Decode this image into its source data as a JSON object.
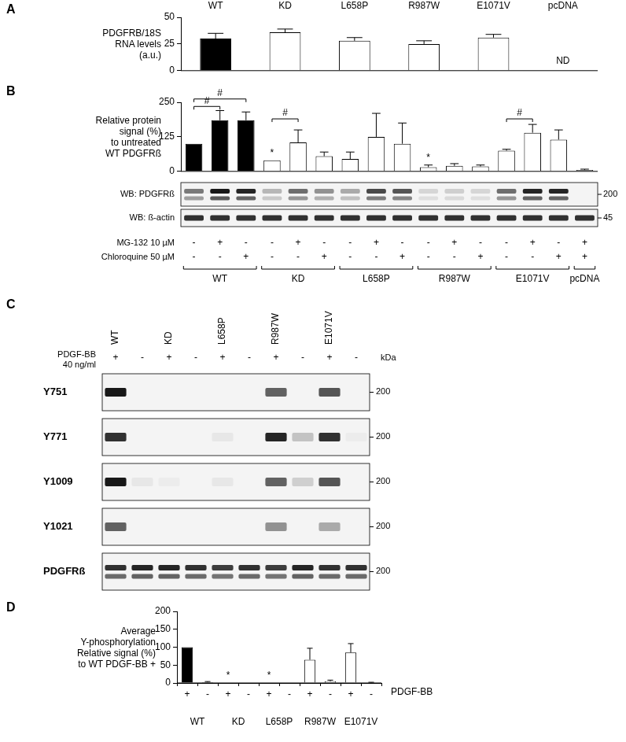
{
  "chart_data": [
    {
      "panel": "A",
      "type": "bar",
      "categories": [
        "WT",
        "KD",
        "L658P",
        "R987W",
        "E1071V",
        "pcDNA"
      ],
      "values": [
        30,
        36,
        28,
        25,
        31,
        null
      ],
      "errors": [
        5,
        3,
        3,
        3,
        3,
        null
      ],
      "colors": [
        "#000000",
        "#ffffff",
        "#ffffff",
        "#ffffff",
        "#ffffff",
        "#ffffff"
      ],
      "y_label": [
        "PDGFRB/18S",
        "RNA levels",
        "(a.u.)"
      ],
      "ylim": [
        0,
        50
      ],
      "yticks": [
        0,
        25,
        50
      ],
      "annotations": [
        {
          "index": 5,
          "text": "ND"
        }
      ]
    },
    {
      "panel": "B",
      "type": "bar",
      "categories": [
        null,
        null,
        null,
        null,
        null,
        null,
        null,
        null,
        null,
        null,
        null,
        null,
        null,
        null,
        null,
        null
      ],
      "values": [
        100,
        185,
        185,
        40,
        105,
        55,
        45,
        125,
        100,
        15,
        20,
        18,
        75,
        140,
        115,
        5
      ],
      "errors": [
        0,
        35,
        30,
        0,
        45,
        15,
        25,
        85,
        75,
        8,
        8,
        5,
        5,
        30,
        35,
        3
      ],
      "colors": [
        "#000000",
        "#000000",
        "#000000",
        "#ffffff",
        "#ffffff",
        "#ffffff",
        "#ffffff",
        "#ffffff",
        "#ffffff",
        "#ffffff",
        "#ffffff",
        "#ffffff",
        "#ffffff",
        "#ffffff",
        "#ffffff",
        "#ffffff"
      ],
      "y_label": [
        "Relative protein",
        "signal (%)",
        "to untreated",
        "WT PDGFRß"
      ],
      "ylim": [
        0,
        250
      ],
      "yticks": [
        0,
        125,
        250
      ],
      "significance": [
        {
          "from": 0,
          "to": 1,
          "y": 235,
          "text": "#"
        },
        {
          "from": 0,
          "to": 2,
          "y": 262,
          "text": "#"
        },
        {
          "from": 3,
          "to": 4,
          "y": 190,
          "text": "#"
        },
        {
          "from": 12,
          "to": 13,
          "y": 190,
          "text": "#"
        }
      ],
      "annotations": [
        {
          "index": 3,
          "text": "*"
        },
        {
          "index": 9,
          "text": "*"
        }
      ]
    },
    {
      "panel": "D",
      "type": "bar",
      "categories": [
        "+",
        "-",
        "+",
        "-",
        "+",
        "-",
        "+",
        "-",
        "+",
        "-"
      ],
      "values": [
        100,
        2,
        1,
        0,
        1,
        0,
        65,
        5,
        85,
        1
      ],
      "errors": [
        0,
        2,
        0,
        0,
        0,
        0,
        32,
        3,
        25,
        1
      ],
      "colors": [
        "#000000",
        "#000000",
        "#ffffff",
        "#ffffff",
        "#ffffff",
        "#ffffff",
        "#ffffff",
        "#ffffff",
        "#ffffff",
        "#ffffff"
      ],
      "x_label": "PDGF-BB",
      "groups": [
        "WT",
        "KD",
        "L658P",
        "R987W",
        "E1071V"
      ],
      "y_label": [
        "Average",
        "Y-phosphorylation",
        "Relative signal (%)",
        "to WT PDGF-BB +"
      ],
      "ylim": [
        0,
        200
      ],
      "yticks": [
        0,
        50,
        100,
        150,
        200
      ],
      "annotations": [
        {
          "index": 2,
          "text": "*"
        },
        {
          "index": 4,
          "text": "*"
        }
      ]
    }
  ],
  "blots": [
    {
      "panel": "B",
      "rows": [
        {
          "label": "WB: PDGFRß",
          "marker": 200,
          "bands": [
            0.5,
            0.9,
            0.85,
            0.25,
            0.55,
            0.4,
            0.3,
            0.7,
            0.65,
            0.12,
            0.15,
            0.12,
            0.55,
            0.85,
            0.85,
            0
          ]
        },
        {
          "label": "WB: ß-actin",
          "marker": 45,
          "bands": [
            0.8,
            0.8,
            0.8,
            0.8,
            0.8,
            0.8,
            0.8,
            0.8,
            0.8,
            0.8,
            0.8,
            0.8,
            0.8,
            0.8,
            0.8,
            0.8
          ]
        }
      ],
      "treatments": [
        {
          "label": "MG-132 10 µM",
          "signs": [
            "-",
            "+",
            "-",
            "-",
            "+",
            "-",
            "-",
            "+",
            "-",
            "-",
            "+",
            "-",
            "-",
            "+",
            "-",
            "+"
          ]
        },
        {
          "label": "Chloroquine 50 µM",
          "signs": [
            "-",
            "-",
            "+",
            "-",
            "-",
            "+",
            "-",
            "-",
            "+",
            "-",
            "-",
            "+",
            "-",
            "-",
            "+",
            "+"
          ]
        }
      ],
      "groups": [
        {
          "label": "WT",
          "lanes": 3
        },
        {
          "label": "KD",
          "lanes": 3
        },
        {
          "label": "L658P",
          "lanes": 3
        },
        {
          "label": "R987W",
          "lanes": 3
        },
        {
          "label": "E1071V",
          "lanes": 3
        },
        {
          "label": "pcDNA",
          "lanes": 1
        }
      ]
    },
    {
      "panel": "C",
      "lane_labels": [
        "WT",
        null,
        "KD",
        null,
        "L658P",
        null,
        "R987W",
        null,
        "E1071V",
        null
      ],
      "treatment": {
        "label": [
          "PDGF-BB",
          "40 ng/ml"
        ],
        "signs": [
          "+",
          "-",
          "+",
          "-",
          "+",
          "-",
          "+",
          "-",
          "+",
          "-"
        ]
      },
      "unit": "kDa",
      "rows": [
        {
          "label": "Y751",
          "marker": 200,
          "bands": [
            0.9,
            0,
            0,
            0,
            0,
            0,
            0.6,
            0,
            0.65,
            0
          ]
        },
        {
          "label": "Y771",
          "marker": 200,
          "bands": [
            0.8,
            0,
            0,
            0,
            0.05,
            0,
            0.85,
            0.2,
            0.8,
            0.03
          ]
        },
        {
          "label": "Y1009",
          "marker": 200,
          "bands": [
            0.9,
            0.05,
            0.03,
            0,
            0.05,
            0,
            0.6,
            0.15,
            0.65,
            0
          ]
        },
        {
          "label": "Y1021",
          "marker": 200,
          "bands": [
            0.6,
            0,
            0,
            0,
            0,
            0,
            0.4,
            0,
            0.3,
            0
          ]
        },
        {
          "label": "PDGFRß",
          "marker": 200,
          "bands": [
            0.8,
            0.85,
            0.85,
            0.8,
            0.75,
            0.8,
            0.75,
            0.85,
            0.8,
            0.8
          ]
        }
      ]
    }
  ]
}
